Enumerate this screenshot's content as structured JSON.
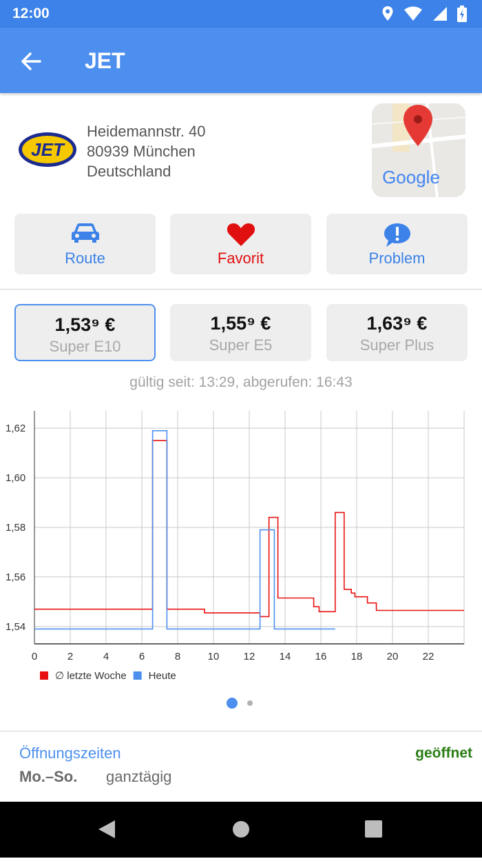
{
  "status_bar": {
    "time": "12:00",
    "icons": [
      "location-icon",
      "wifi-icon",
      "signal-icon",
      "battery-icon"
    ]
  },
  "app_bar": {
    "title": "JET",
    "back_icon": "arrow-back-icon"
  },
  "station": {
    "brand_logo_text": "JET",
    "address_line1": "Heidemannstr. 40",
    "address_line2": "80939 München",
    "address_line3": "Deutschland",
    "map_label": "Google"
  },
  "actions": [
    {
      "label": "Route",
      "icon": "car-icon",
      "color": "#3c82e8"
    },
    {
      "label": "Favorit",
      "icon": "heart-icon",
      "color": "#e01010"
    },
    {
      "label": "Problem",
      "icon": "chat-alert-icon",
      "color": "#3c82e8"
    }
  ],
  "prices": [
    {
      "value": "1,53⁹ €",
      "fuel": "Super E10",
      "selected": true
    },
    {
      "value": "1,55⁹ €",
      "fuel": "Super E5",
      "selected": false
    },
    {
      "value": "1,63⁹ €",
      "fuel": "Super Plus",
      "selected": false
    }
  ],
  "validity_text": "gültig seit: 13:29, abgerufen: 16:43",
  "chart_data": {
    "type": "line",
    "xlim": [
      0,
      24
    ],
    "ylim": [
      1.533,
      1.627
    ],
    "x_ticks": [
      "0",
      "2",
      "4",
      "6",
      "8",
      "10",
      "12",
      "14",
      "16",
      "18",
      "20",
      "22"
    ],
    "y_ticks": [
      "1,54",
      "1,56",
      "1,58",
      "1,60",
      "1,62"
    ],
    "grid": true,
    "legend_position": "bottom-left",
    "series": [
      {
        "name": "∅ letzte Woche",
        "color": "#e81010",
        "x": [
          0,
          6.6,
          6.6,
          7.4,
          7.4,
          9.5,
          9.5,
          12.6,
          12.6,
          13.1,
          13.1,
          13.6,
          13.6,
          15.6,
          15.6,
          15.9,
          15.9,
          16.8,
          16.8,
          17.3,
          17.3,
          17.7,
          17.7,
          17.9,
          17.9,
          18.6,
          18.6,
          19.1,
          19.1,
          19.3,
          19.3,
          24
        ],
        "y": [
          1.547,
          1.547,
          1.615,
          1.615,
          1.547,
          1.547,
          1.5455,
          1.5455,
          1.544,
          1.544,
          1.584,
          1.584,
          1.5515,
          1.5515,
          1.548,
          1.548,
          1.546,
          1.546,
          1.586,
          1.586,
          1.555,
          1.555,
          1.5535,
          1.5535,
          1.552,
          1.552,
          1.5495,
          1.5495,
          1.5465,
          1.5465,
          1.5465,
          1.5465
        ]
      },
      {
        "name": "Heute",
        "color": "#4d8fee",
        "x": [
          0,
          6.6,
          6.6,
          7.4,
          7.4,
          12.6,
          12.6,
          13.4,
          13.4,
          16.8
        ],
        "y": [
          1.539,
          1.539,
          1.619,
          1.619,
          1.539,
          1.539,
          1.579,
          1.579,
          1.539,
          1.539
        ]
      }
    ]
  },
  "pager": {
    "pages": 2,
    "active": 0
  },
  "opening_hours": {
    "title": "Öffnungszeiten",
    "status": "geöffnet",
    "days": "Mo.–So.",
    "hours": "ganztägig"
  },
  "nav_bar": {
    "buttons": [
      "back-nav-icon",
      "home-nav-icon",
      "recents-nav-icon"
    ]
  }
}
